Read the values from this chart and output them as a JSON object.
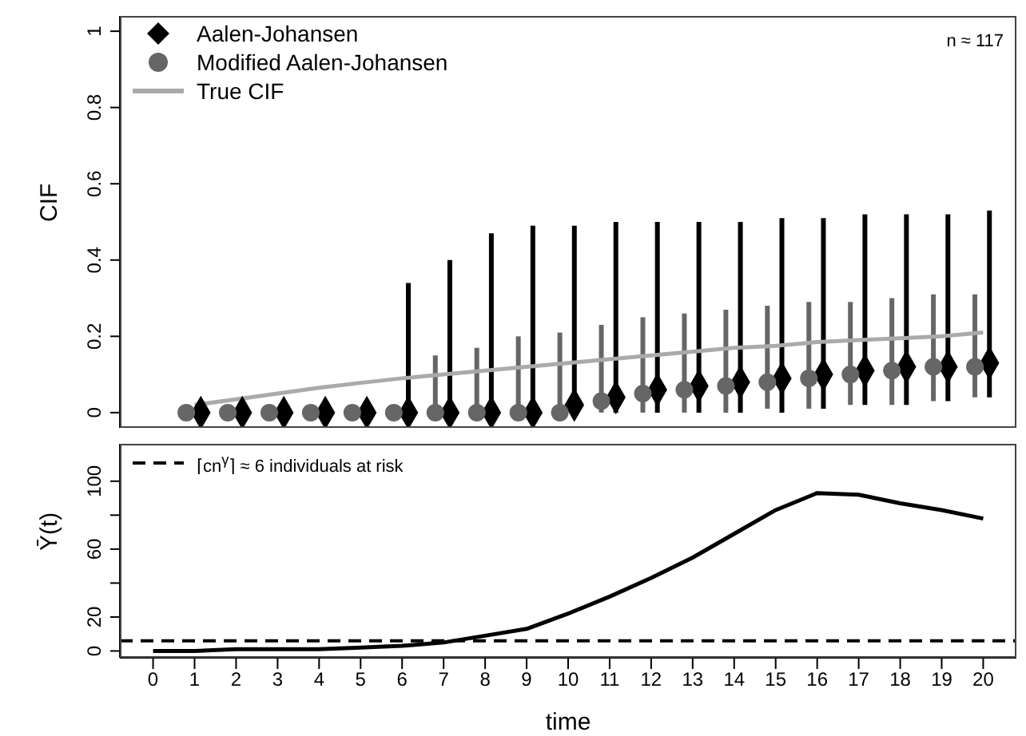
{
  "chart_data": [
    {
      "type": "scatter",
      "ylabel": "CIF",
      "annotations": [
        "n ≈ 117"
      ],
      "xlim": [
        -0.8,
        20.8
      ],
      "ylim": [
        -0.04,
        1.04
      ],
      "yticks": [
        0,
        0.2,
        0.4,
        0.6,
        0.8,
        1
      ],
      "tick_labels": "y",
      "legend": "top left",
      "series": [
        {
          "name": "Aalen-Johansen",
          "marker": "diamond",
          "color": "#000000",
          "x": [
            1.15,
            2.15,
            3.15,
            4.15,
            5.15,
            6.15,
            7.15,
            8.15,
            9.15,
            10.15,
            11.15,
            12.15,
            13.15,
            14.15,
            15.15,
            16.15,
            17.15,
            18.15,
            19.15,
            20.15
          ],
          "values": [
            0,
            0,
            0,
            0,
            0,
            0,
            0,
            0,
            0,
            0.02,
            0.04,
            0.06,
            0.07,
            0.08,
            0.09,
            0.1,
            0.11,
            0.12,
            0.12,
            0.13
          ],
          "errors": [
            null,
            null,
            null,
            null,
            null,
            [
              0,
              0.34
            ],
            [
              0,
              0.4
            ],
            [
              0,
              0.47
            ],
            [
              0,
              0.49
            ],
            [
              0,
              0.49
            ],
            [
              0,
              0.5
            ],
            [
              0,
              0.5
            ],
            [
              0,
              0.5
            ],
            [
              0,
              0.5
            ],
            [
              0,
              0.51
            ],
            [
              0.01,
              0.51
            ],
            [
              0.02,
              0.52
            ],
            [
              0.02,
              0.52
            ],
            [
              0.03,
              0.52
            ],
            [
              0.04,
              0.53
            ]
          ]
        },
        {
          "name": "Modified Aalen-Johansen",
          "marker": "circle",
          "color": "#666666",
          "x": [
            0.8,
            1.8,
            2.8,
            3.8,
            4.8,
            5.8,
            6.8,
            7.8,
            8.8,
            9.8,
            10.8,
            11.8,
            12.8,
            13.8,
            14.8,
            15.8,
            16.8,
            17.8,
            18.8,
            19.8
          ],
          "values": [
            0,
            0,
            0,
            0,
            0,
            0,
            0,
            0,
            0,
            0,
            0.03,
            0.05,
            0.06,
            0.07,
            0.08,
            0.09,
            0.1,
            0.11,
            0.12,
            0.12
          ],
          "errors": [
            null,
            null,
            null,
            null,
            null,
            null,
            [
              0,
              0.15
            ],
            [
              0,
              0.17
            ],
            [
              0,
              0.2
            ],
            [
              0,
              0.21
            ],
            [
              0,
              0.23
            ],
            [
              0,
              0.25
            ],
            [
              0,
              0.26
            ],
            [
              0,
              0.27
            ],
            [
              0.01,
              0.28
            ],
            [
              0.01,
              0.29
            ],
            [
              0.02,
              0.29
            ],
            [
              0.02,
              0.3
            ],
            [
              0.03,
              0.31
            ],
            [
              0.04,
              0.31
            ]
          ]
        },
        {
          "name": "True CIF",
          "type": "line",
          "marker": "none",
          "color": "#aaaaaa",
          "x": [
            1,
            2,
            3,
            4,
            5,
            6,
            7,
            8,
            9,
            10,
            11,
            12,
            13,
            14,
            15,
            16,
            17,
            18,
            19,
            20
          ],
          "values": [
            0.02,
            0.035,
            0.05,
            0.065,
            0.078,
            0.09,
            0.1,
            0.11,
            0.12,
            0.13,
            0.14,
            0.15,
            0.16,
            0.17,
            0.175,
            0.185,
            0.19,
            0.195,
            0.2,
            0.21
          ]
        }
      ]
    },
    {
      "type": "line",
      "xlabel": "time",
      "ylabel": "Ȳ(t)",
      "xlim": [
        -0.8,
        20.8
      ],
      "xticks": [
        0,
        1,
        2,
        3,
        4,
        5,
        6,
        7,
        8,
        9,
        10,
        11,
        12,
        13,
        14,
        15,
        16,
        17,
        18,
        19,
        20
      ],
      "ylim": [
        -4,
        122
      ],
      "yticks": [
        0,
        20,
        {
          "value": 40,
          "label": null
        },
        60,
        {
          "value": 80,
          "label": null
        },
        100
      ],
      "legend": "top left",
      "marker": "none",
      "series": [
        {
          "color": "#000000",
          "x": [
            0,
            1,
            2,
            3,
            4,
            5,
            6,
            7,
            8,
            9,
            10,
            11,
            12,
            13,
            14,
            15,
            16,
            17,
            18,
            19,
            20
          ],
          "values": [
            0,
            0,
            1,
            1,
            1,
            2,
            3,
            5,
            9,
            13,
            22,
            32,
            43,
            55,
            69,
            83,
            93,
            92,
            87,
            83,
            78
          ]
        }
      ],
      "ref_lines": [
        {
          "axis": "y",
          "value": 6,
          "label": "⌈cn$^{γ}$⌉ ≈ 6 individuals at risk",
          "line_style": "dashed",
          "color": "#000000"
        }
      ]
    }
  ]
}
